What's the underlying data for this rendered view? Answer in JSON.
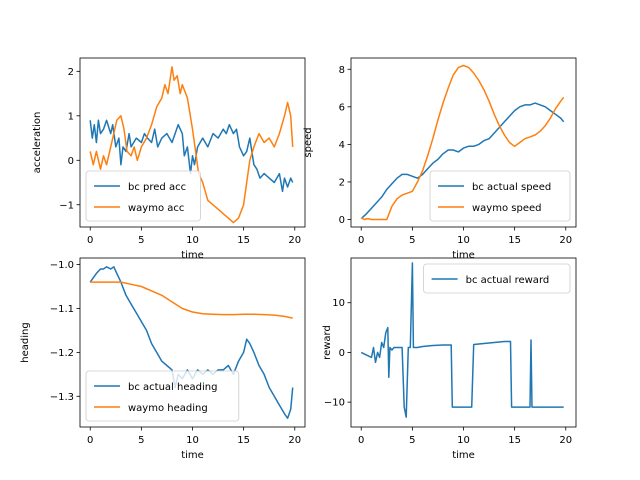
{
  "colors": {
    "series1": "#1f77b4",
    "series2": "#ff7f0e"
  },
  "chart_data": [
    {
      "type": "line",
      "xlabel": "time",
      "ylabel": "acceleration",
      "xlim": [
        -1,
        21
      ],
      "ylim": [
        -1.5,
        2.3
      ],
      "xticks": [
        0,
        5,
        10,
        15,
        20
      ],
      "yticks": [
        -1,
        0,
        1,
        2
      ],
      "legend": "lower-left",
      "series": [
        {
          "name": "bc pred acc",
          "color": "#1f77b4",
          "x": [
            0,
            0.2,
            0.4,
            0.6,
            0.8,
            1,
            1.3,
            1.6,
            2,
            2.2,
            2.5,
            2.8,
            3,
            3.2,
            3.5,
            3.8,
            4,
            4.5,
            5,
            5.3,
            5.6,
            6,
            6.3,
            6.6,
            7,
            7.5,
            8,
            8.3,
            8.6,
            9,
            9.2,
            9.5,
            9.8,
            10,
            10.2,
            10.5,
            11,
            11.5,
            12,
            12.5,
            13,
            13.3,
            13.6,
            14,
            14.3,
            14.6,
            15,
            15.3,
            15.6,
            16,
            16.3,
            16.6,
            17,
            17.5,
            18,
            18.5,
            18.8,
            19,
            19.3,
            19.6,
            19.8
          ],
          "y": [
            0.9,
            0.5,
            0.8,
            0.4,
            0.9,
            0.6,
            0.7,
            0.9,
            0.6,
            0.8,
            0.3,
            0.5,
            -0.1,
            0.3,
            0.2,
            0.6,
            0.3,
            0.5,
            0.4,
            0.6,
            0.5,
            0.4,
            0.7,
            0.3,
            0.5,
            0.6,
            0.4,
            0.6,
            0.8,
            0.6,
            0.1,
            0.3,
            -0.3,
            0.1,
            -0.1,
            0.3,
            0.5,
            0.3,
            0.6,
            0.5,
            0.7,
            0.6,
            0.8,
            0.6,
            0.7,
            0.3,
            0.1,
            0.2,
            0.5,
            -0.1,
            -0.2,
            -0.4,
            -0.3,
            -0.4,
            -0.5,
            -0.3,
            -0.7,
            -0.4,
            -0.6,
            -0.4,
            -0.5
          ]
        },
        {
          "name": "waymo acc",
          "color": "#ff7f0e",
          "x": [
            0,
            0.3,
            0.6,
            1,
            1.3,
            1.6,
            2,
            2.3,
            2.6,
            3,
            3.3,
            3.6,
            4,
            4.3,
            4.6,
            5,
            5.5,
            6,
            6.5,
            7,
            7.3,
            7.6,
            8,
            8.2,
            8.5,
            8.8,
            9,
            9.5,
            10,
            10.3,
            10.6,
            11,
            11.5,
            12,
            12.5,
            13,
            13.5,
            14,
            14.5,
            15,
            15.3,
            15.6,
            16,
            16.5,
            17,
            17.5,
            18,
            18.5,
            19,
            19.3,
            19.6,
            19.8
          ],
          "y": [
            0.2,
            -0.1,
            0.2,
            -0.2,
            0.1,
            -0.1,
            0.3,
            0.6,
            0.9,
            1.0,
            0.7,
            0.2,
            0.1,
            0.3,
            0.0,
            0.3,
            0.5,
            0.8,
            1.2,
            1.4,
            1.7,
            1.5,
            2.1,
            1.8,
            1.9,
            1.5,
            1.7,
            1.4,
            0.7,
            0.2,
            -0.3,
            -0.5,
            -0.9,
            -1.0,
            -1.1,
            -1.2,
            -1.3,
            -1.4,
            -1.3,
            -1.0,
            -0.5,
            0.0,
            0.3,
            0.6,
            0.4,
            0.5,
            0.3,
            0.6,
            1.0,
            1.3,
            1.0,
            0.3
          ]
        }
      ]
    },
    {
      "type": "line",
      "xlabel": "time",
      "ylabel": "speed",
      "xlim": [
        -1,
        21
      ],
      "ylim": [
        -0.4,
        8.6
      ],
      "xticks": [
        0,
        5,
        10,
        15,
        20
      ],
      "yticks": [
        0,
        2,
        4,
        6,
        8
      ],
      "legend": "lower-right",
      "series": [
        {
          "name": "bc actual speed",
          "color": "#1f77b4",
          "x": [
            0,
            0.5,
            1,
            1.5,
            2,
            2.5,
            3,
            3.5,
            4,
            4.5,
            5,
            5.5,
            6,
            6.5,
            7,
            7.5,
            8,
            8.5,
            9,
            9.5,
            10,
            10.5,
            11,
            11.5,
            12,
            12.5,
            13,
            13.5,
            14,
            14.5,
            15,
            15.5,
            16,
            16.5,
            17,
            17.5,
            18,
            18.5,
            19,
            19.5,
            19.8
          ],
          "y": [
            0.05,
            0.3,
            0.6,
            0.9,
            1.2,
            1.6,
            1.9,
            2.2,
            2.4,
            2.4,
            2.3,
            2.2,
            2.4,
            2.7,
            3.0,
            3.2,
            3.5,
            3.7,
            3.7,
            3.6,
            3.8,
            3.9,
            3.9,
            4.0,
            4.2,
            4.3,
            4.6,
            4.9,
            5.2,
            5.5,
            5.8,
            6.0,
            6.1,
            6.1,
            6.2,
            6.1,
            6.0,
            5.8,
            5.6,
            5.4,
            5.2
          ]
        },
        {
          "name": "waymo speed",
          "color": "#ff7f0e",
          "x": [
            0,
            0.3,
            0.6,
            1,
            1.5,
            2,
            2.5,
            3,
            3.5,
            4,
            4.5,
            5,
            5.5,
            6,
            6.5,
            7,
            7.5,
            8,
            8.5,
            9,
            9.5,
            10,
            10.5,
            11,
            11.5,
            12,
            12.5,
            13,
            13.5,
            14,
            14.5,
            15,
            15.5,
            16,
            16.5,
            17,
            17.5,
            18,
            18.5,
            19,
            19.5,
            19.8
          ],
          "y": [
            0.1,
            0.0,
            0.05,
            0.0,
            0.0,
            0.0,
            0.0,
            0.7,
            1.1,
            1.3,
            1.4,
            1.5,
            2.0,
            2.6,
            3.4,
            4.3,
            5.3,
            6.2,
            7.0,
            7.7,
            8.1,
            8.2,
            8.1,
            7.8,
            7.4,
            6.9,
            6.3,
            5.6,
            5.0,
            4.5,
            4.1,
            3.9,
            4.1,
            4.3,
            4.4,
            4.5,
            4.7,
            5.0,
            5.4,
            5.9,
            6.3,
            6.5
          ]
        }
      ]
    },
    {
      "type": "line",
      "xlabel": "time",
      "ylabel": "heading",
      "xlim": [
        -1,
        21
      ],
      "ylim": [
        -1.37,
        -0.985
      ],
      "xticks": [
        0,
        5,
        10,
        15,
        20
      ],
      "yticks": [
        -1.0,
        -1.1,
        -1.2,
        -1.3
      ],
      "ytick_labels": [
        "−1.0",
        "−1.1",
        "−1.2",
        "−1.3"
      ],
      "legend": "lower-left",
      "series": [
        {
          "name": "bc actual heading",
          "color": "#1f77b4",
          "x": [
            0,
            0.3,
            0.6,
            1,
            1.3,
            1.6,
            2,
            2.3,
            2.6,
            3,
            3.5,
            4,
            4.5,
            5,
            5.5,
            6,
            6.5,
            7,
            7.5,
            8,
            8.3,
            8.6,
            9,
            9.5,
            10,
            10.5,
            11,
            11.5,
            12,
            12.5,
            13,
            13.5,
            14,
            14.5,
            15,
            15.3,
            15.6,
            16,
            16.5,
            17,
            17.5,
            18,
            18.5,
            19,
            19.3,
            19.6,
            19.8
          ],
          "y": [
            -1.04,
            -1.03,
            -1.02,
            -1.01,
            -1.01,
            -1.005,
            -1.01,
            -1.005,
            -1.02,
            -1.04,
            -1.07,
            -1.09,
            -1.11,
            -1.13,
            -1.15,
            -1.18,
            -1.2,
            -1.22,
            -1.23,
            -1.24,
            -1.28,
            -1.25,
            -1.26,
            -1.24,
            -1.26,
            -1.24,
            -1.25,
            -1.24,
            -1.25,
            -1.24,
            -1.24,
            -1.23,
            -1.25,
            -1.22,
            -1.2,
            -1.17,
            -1.18,
            -1.2,
            -1.23,
            -1.25,
            -1.28,
            -1.3,
            -1.32,
            -1.34,
            -1.35,
            -1.33,
            -1.28
          ]
        },
        {
          "name": "waymo heading",
          "color": "#ff7f0e",
          "x": [
            0,
            1,
            2,
            3,
            4,
            5,
            6,
            7,
            8,
            9,
            10,
            11,
            12,
            13,
            14,
            15,
            16,
            17,
            18,
            19,
            19.8
          ],
          "y": [
            -1.04,
            -1.04,
            -1.04,
            -1.04,
            -1.045,
            -1.05,
            -1.06,
            -1.07,
            -1.085,
            -1.1,
            -1.108,
            -1.112,
            -1.113,
            -1.114,
            -1.114,
            -1.113,
            -1.113,
            -1.114,
            -1.115,
            -1.118,
            -1.122
          ]
        }
      ]
    },
    {
      "type": "line",
      "xlabel": "time",
      "ylabel": "reward",
      "xlim": [
        -1,
        21
      ],
      "ylim": [
        -15,
        19
      ],
      "xticks": [
        0,
        5,
        10,
        15,
        20
      ],
      "yticks": [
        -10,
        0,
        10
      ],
      "ytick_labels": [
        "−10",
        "0",
        "10"
      ],
      "legend": "top-right",
      "series": [
        {
          "name": "bc actual reward",
          "color": "#1f77b4",
          "x": [
            0,
            0.5,
            1,
            1.2,
            1.4,
            1.6,
            1.8,
            2.0,
            2.2,
            2.4,
            2.6,
            2.7,
            2.8,
            3.0,
            3.2,
            3.5,
            4.0,
            4.2,
            4.4,
            4.6,
            4.8,
            5.0,
            5.1,
            5.2,
            5.3,
            5.5,
            6,
            7,
            8,
            8.8,
            8.9,
            9.5,
            10.5,
            10.8,
            11,
            12,
            13,
            14,
            14.6,
            14.7,
            15,
            16,
            16.5,
            16.6,
            16.7,
            16.8,
            17,
            18,
            19,
            19.8
          ],
          "y": [
            0,
            -0.5,
            -1,
            1,
            -2,
            0,
            -1,
            2,
            1,
            4,
            5,
            -5,
            1,
            0.5,
            1,
            1,
            1,
            -11,
            -13,
            1,
            1,
            18,
            1,
            1,
            1,
            1,
            1.2,
            1.4,
            1.5,
            1.5,
            -11,
            -11,
            -11,
            -11,
            1.6,
            1.8,
            2.0,
            2.2,
            2.2,
            -11,
            -11,
            -11,
            -11,
            2.5,
            -11,
            -11,
            -11,
            -11,
            -11,
            -11
          ]
        }
      ]
    }
  ]
}
